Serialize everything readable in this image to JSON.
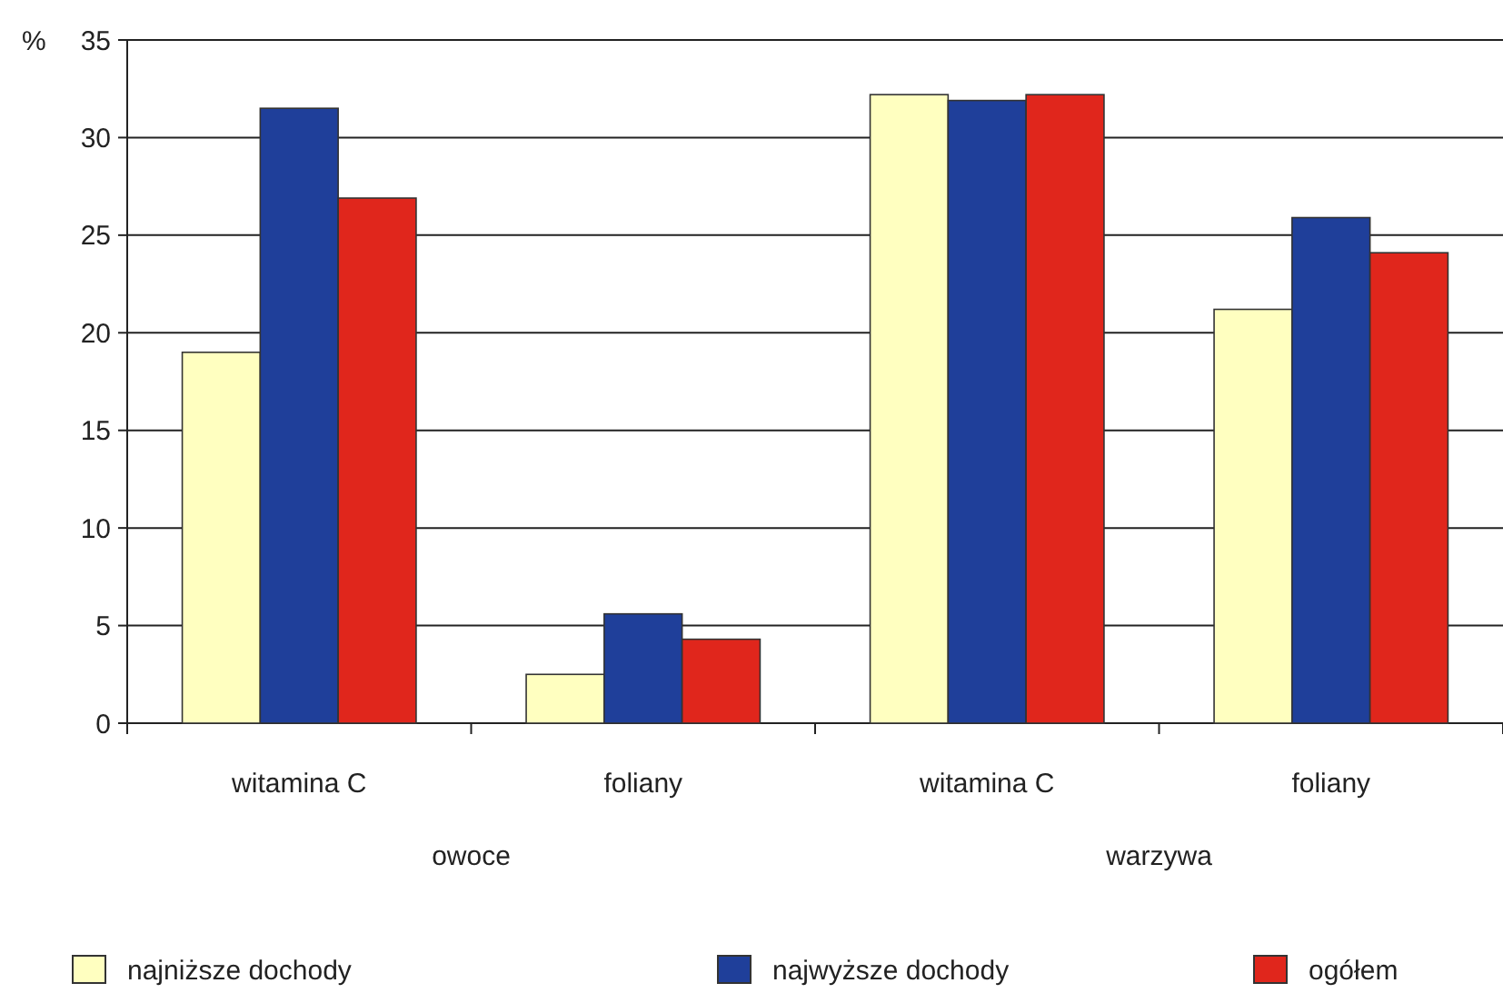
{
  "chart_data": {
    "type": "bar",
    "ylabel": "%",
    "categories": [
      "witamina C",
      "foliany",
      "witamina C",
      "foliany"
    ],
    "series": [
      {
        "name": "najniższe dochody",
        "color": "#ffffc0",
        "values": [
          19,
          2.5,
          32.2,
          21.2
        ]
      },
      {
        "name": "najwyższe dochody",
        "color": "#1f3f9a",
        "values": [
          31.5,
          5.6,
          31.9,
          25.9
        ]
      },
      {
        "name": "ogółem",
        "color": "#e0261c",
        "values": [
          26.9,
          4.3,
          32.2,
          24.1
        ]
      }
    ],
    "annotations": [
      "owoce",
      "warzywa"
    ],
    "ylim": [
      0,
      35
    ],
    "yticks": [
      0,
      5,
      10,
      15,
      20,
      25,
      30,
      35
    ],
    "grid": "y",
    "legend": "bottom"
  }
}
